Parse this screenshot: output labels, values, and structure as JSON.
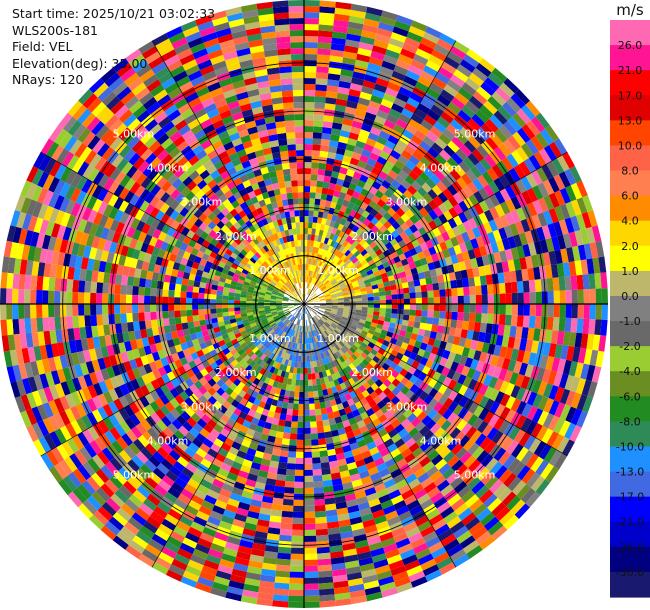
{
  "info": {
    "start_time": "Start time: 2025/10/21 03:02:33",
    "site": "WLS200s-181",
    "field": "Field: VEL",
    "elevation": "Elevation(deg): 35.00",
    "nrays": "NRays: 120"
  },
  "chart_data": {
    "type": "heatmap",
    "projection": "polar (PPI scan)",
    "field": "VEL",
    "elevation_deg": 35.0,
    "n_rays": 120,
    "range_ring_labels": [
      "1.00km",
      "2.00km",
      "3.00km",
      "4.00km",
      "5.00km"
    ],
    "range_rings_km": [
      1,
      2,
      3,
      4,
      5
    ],
    "max_range_km": 6.3,
    "colorbar": {
      "title": "m/s",
      "ticks": [
        "26.0",
        "21.0",
        "17.0",
        "13.0",
        "10.0",
        "8.0",
        "6.0",
        "4.0",
        "2.0",
        "1.0",
        "0.0",
        "-1.0",
        "-2.0",
        "-4.0",
        "-6.0",
        "-8.0",
        "-10.0",
        "-13.0",
        "-17.0",
        "-21.0",
        "-26.0",
        "-30.0"
      ],
      "colors": [
        "#ff69b4",
        "#ff1493",
        "#ff0000",
        "#e00000",
        "#ff4500",
        "#ff6347",
        "#ff7f50",
        "#ff8c00",
        "#ffd700",
        "#ffff00",
        "#bdb76b",
        "#808080",
        "#696969",
        "#9acd32",
        "#6b8e23",
        "#228b22",
        "#2e8b57",
        "#1e90ff",
        "#4169e1",
        "#0000ff",
        "#0000cd",
        "#000080",
        "#191970"
      ]
    }
  }
}
